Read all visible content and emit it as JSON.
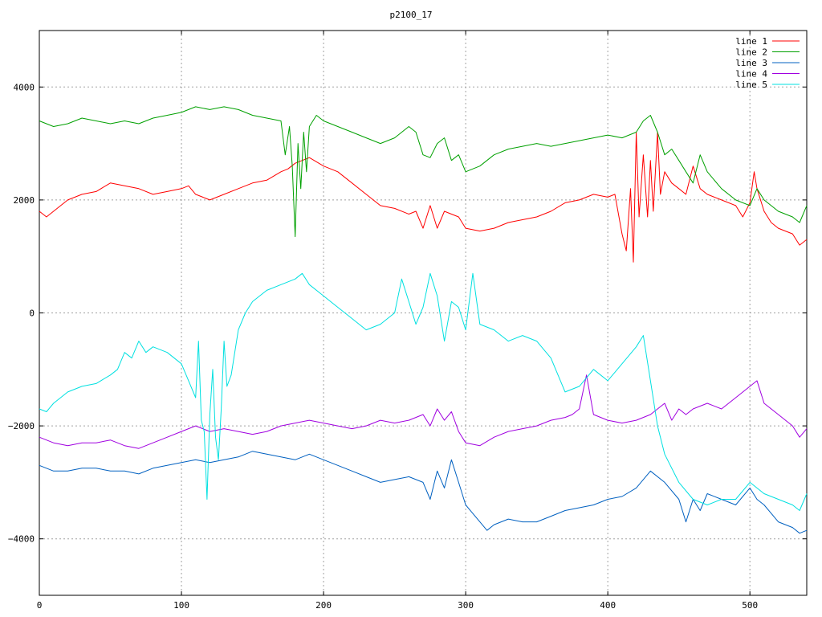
{
  "chart_data": {
    "type": "line",
    "title": "p2100_17",
    "xlabel": "",
    "ylabel": "",
    "xlim": [
      0,
      540
    ],
    "ylim": [
      -5000,
      5000
    ],
    "xticks": [
      0,
      100,
      200,
      300,
      400,
      500
    ],
    "yticks": [
      -4000,
      -2000,
      0,
      2000,
      4000
    ],
    "grid": true,
    "legend_position": "top-right",
    "series": [
      {
        "name": "line 1",
        "color": "#ff0000",
        "x": [
          0,
          5,
          10,
          15,
          20,
          25,
          30,
          40,
          50,
          60,
          70,
          80,
          90,
          100,
          105,
          110,
          115,
          120,
          130,
          140,
          150,
          160,
          170,
          175,
          180,
          185,
          190,
          200,
          210,
          220,
          230,
          240,
          250,
          260,
          265,
          270,
          275,
          280,
          285,
          290,
          295,
          300,
          310,
          320,
          330,
          340,
          350,
          360,
          370,
          380,
          390,
          400,
          405,
          410,
          413,
          416,
          418,
          420,
          422,
          425,
          428,
          430,
          432,
          435,
          437,
          440,
          445,
          450,
          455,
          460,
          465,
          470,
          480,
          490,
          495,
          500,
          503,
          505,
          510,
          515,
          520,
          525,
          530,
          535,
          540
        ],
        "y": [
          1800,
          1700,
          1800,
          1900,
          2000,
          2050,
          2100,
          2150,
          2300,
          2250,
          2200,
          2100,
          2150,
          2200,
          2250,
          2100,
          2050,
          2000,
          2100,
          2200,
          2300,
          2350,
          2500,
          2550,
          2650,
          2700,
          2750,
          2600,
          2500,
          2300,
          2100,
          1900,
          1850,
          1750,
          1800,
          1500,
          1900,
          1500,
          1800,
          1750,
          1700,
          1500,
          1450,
          1500,
          1600,
          1650,
          1700,
          1800,
          1950,
          2000,
          2100,
          2050,
          2100,
          1400,
          1100,
          2200,
          900,
          3200,
          1700,
          2800,
          1700,
          2700,
          1800,
          3200,
          2100,
          2500,
          2300,
          2200,
          2100,
          2600,
          2200,
          2100,
          2000,
          1900,
          1700,
          1950,
          2500,
          2200,
          1800,
          1600,
          1500,
          1450,
          1400,
          1200,
          1300
        ]
      },
      {
        "name": "line 2",
        "color": "#00a000",
        "x": [
          0,
          10,
          20,
          30,
          40,
          50,
          60,
          70,
          80,
          90,
          100,
          110,
          120,
          130,
          140,
          150,
          160,
          170,
          173,
          176,
          178,
          180,
          182,
          184,
          186,
          188,
          190,
          195,
          200,
          210,
          220,
          230,
          240,
          250,
          260,
          265,
          270,
          275,
          280,
          285,
          290,
          295,
          300,
          310,
          320,
          330,
          340,
          350,
          360,
          370,
          380,
          390,
          400,
          410,
          420,
          425,
          430,
          435,
          440,
          445,
          450,
          455,
          460,
          465,
          470,
          480,
          490,
          500,
          505,
          510,
          520,
          530,
          535,
          540
        ],
        "y": [
          3400,
          3300,
          3350,
          3450,
          3400,
          3350,
          3400,
          3350,
          3450,
          3500,
          3550,
          3650,
          3600,
          3650,
          3600,
          3500,
          3450,
          3400,
          2800,
          3300,
          2600,
          1350,
          3000,
          2200,
          3200,
          2500,
          3300,
          3500,
          3400,
          3300,
          3200,
          3100,
          3000,
          3100,
          3300,
          3200,
          2800,
          2750,
          3000,
          3100,
          2700,
          2800,
          2500,
          2600,
          2800,
          2900,
          2950,
          3000,
          2950,
          3000,
          3050,
          3100,
          3150,
          3100,
          3200,
          3400,
          3500,
          3200,
          2800,
          2900,
          2700,
          2500,
          2300,
          2800,
          2500,
          2200,
          2000,
          1900,
          2200,
          2000,
          1800,
          1700,
          1600,
          1900
        ]
      },
      {
        "name": "line 3",
        "color": "#0060c0",
        "x": [
          0,
          10,
          20,
          30,
          40,
          50,
          60,
          70,
          80,
          90,
          100,
          110,
          120,
          130,
          140,
          150,
          160,
          170,
          180,
          190,
          200,
          210,
          220,
          230,
          240,
          250,
          260,
          270,
          275,
          280,
          285,
          290,
          295,
          300,
          310,
          315,
          320,
          330,
          340,
          350,
          360,
          370,
          380,
          390,
          400,
          410,
          420,
          430,
          440,
          450,
          455,
          460,
          465,
          470,
          480,
          490,
          500,
          505,
          510,
          520,
          530,
          535,
          540
        ],
        "y": [
          -2700,
          -2800,
          -2800,
          -2750,
          -2750,
          -2800,
          -2800,
          -2850,
          -2750,
          -2700,
          -2650,
          -2600,
          -2650,
          -2600,
          -2550,
          -2450,
          -2500,
          -2550,
          -2600,
          -2500,
          -2600,
          -2700,
          -2800,
          -2900,
          -3000,
          -2950,
          -2900,
          -3000,
          -3300,
          -2800,
          -3100,
          -2600,
          -3000,
          -3400,
          -3700,
          -3850,
          -3750,
          -3650,
          -3700,
          -3700,
          -3600,
          -3500,
          -3450,
          -3400,
          -3300,
          -3250,
          -3100,
          -2800,
          -3000,
          -3300,
          -3700,
          -3300,
          -3500,
          -3200,
          -3300,
          -3400,
          -3100,
          -3300,
          -3400,
          -3700,
          -3800,
          -3900,
          -3850
        ]
      },
      {
        "name": "line 4",
        "color": "#a000e0",
        "x": [
          0,
          10,
          20,
          30,
          40,
          50,
          60,
          70,
          80,
          90,
          100,
          110,
          120,
          130,
          140,
          150,
          160,
          170,
          180,
          190,
          200,
          210,
          220,
          230,
          240,
          250,
          260,
          270,
          275,
          280,
          285,
          290,
          295,
          300,
          310,
          320,
          330,
          340,
          350,
          360,
          370,
          375,
          380,
          385,
          390,
          400,
          410,
          420,
          430,
          440,
          445,
          450,
          455,
          460,
          470,
          480,
          490,
          500,
          505,
          510,
          520,
          530,
          535,
          540
        ],
        "y": [
          -2200,
          -2300,
          -2350,
          -2300,
          -2300,
          -2250,
          -2350,
          -2400,
          -2300,
          -2200,
          -2100,
          -2000,
          -2100,
          -2050,
          -2100,
          -2150,
          -2100,
          -2000,
          -1950,
          -1900,
          -1950,
          -2000,
          -2050,
          -2000,
          -1900,
          -1950,
          -1900,
          -1800,
          -2000,
          -1700,
          -1900,
          -1750,
          -2100,
          -2300,
          -2350,
          -2200,
          -2100,
          -2050,
          -2000,
          -1900,
          -1850,
          -1800,
          -1700,
          -1100,
          -1800,
          -1900,
          -1950,
          -1900,
          -1800,
          -1600,
          -1900,
          -1700,
          -1800,
          -1700,
          -1600,
          -1700,
          -1500,
          -1300,
          -1200,
          -1600,
          -1800,
          -2000,
          -2200,
          -2050
        ]
      },
      {
        "name": "line 5",
        "color": "#00e0e0",
        "x": [
          0,
          5,
          10,
          20,
          30,
          40,
          50,
          55,
          60,
          65,
          70,
          75,
          80,
          90,
          100,
          105,
          110,
          112,
          114,
          116,
          118,
          120,
          122,
          124,
          126,
          128,
          130,
          132,
          135,
          140,
          145,
          150,
          160,
          170,
          180,
          185,
          190,
          200,
          210,
          220,
          230,
          240,
          250,
          255,
          260,
          265,
          270,
          275,
          280,
          285,
          290,
          295,
          300,
          305,
          310,
          320,
          330,
          340,
          350,
          360,
          370,
          380,
          390,
          400,
          410,
          420,
          425,
          430,
          435,
          440,
          450,
          460,
          470,
          480,
          490,
          500,
          510,
          520,
          530,
          535,
          540
        ],
        "y": [
          -1700,
          -1750,
          -1600,
          -1400,
          -1300,
          -1250,
          -1100,
          -1000,
          -700,
          -800,
          -500,
          -700,
          -600,
          -700,
          -900,
          -1200,
          -1500,
          -500,
          -1900,
          -2100,
          -3300,
          -1800,
          -1000,
          -2200,
          -2600,
          -1700,
          -500,
          -1300,
          -1100,
          -300,
          0,
          200,
          400,
          500,
          600,
          700,
          500,
          300,
          100,
          -100,
          -300,
          -200,
          0,
          600,
          200,
          -200,
          100,
          700,
          300,
          -500,
          200,
          100,
          -300,
          700,
          -200,
          -300,
          -500,
          -400,
          -500,
          -800,
          -1400,
          -1300,
          -1000,
          -1200,
          -900,
          -600,
          -400,
          -1200,
          -2000,
          -2500,
          -3000,
          -3300,
          -3400,
          -3300,
          -3300,
          -3000,
          -3200,
          -3300,
          -3400,
          -3500,
          -3200
        ]
      }
    ]
  }
}
